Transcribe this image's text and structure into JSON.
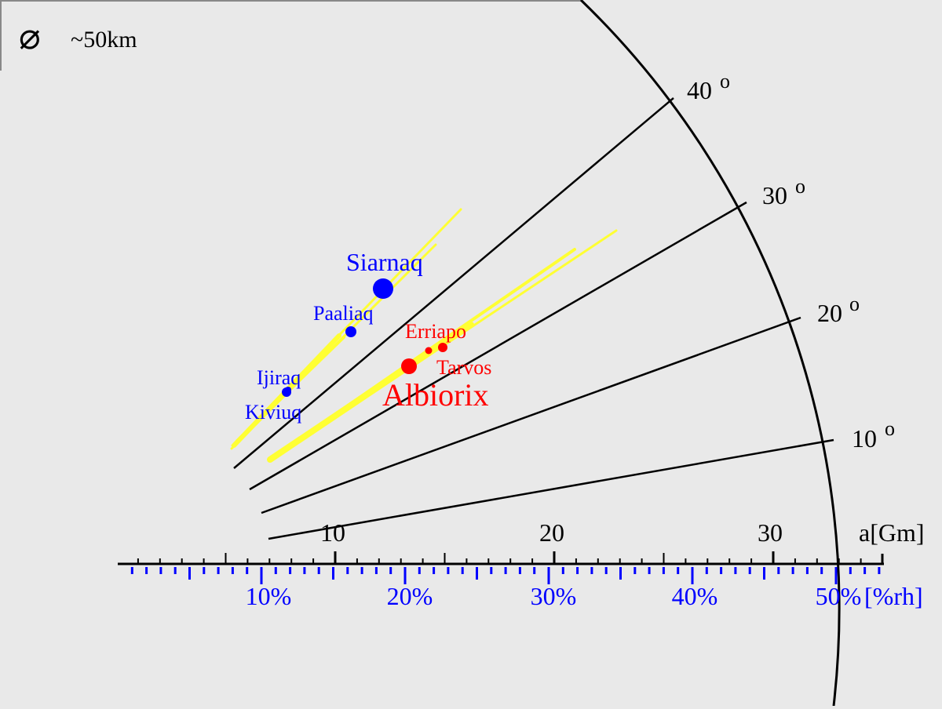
{
  "legend": {
    "symbol": "⌀",
    "text": "~50km"
  },
  "axes": {
    "top_unit": "a[Gm]",
    "top_ticks": [
      {
        "value": 10,
        "label": "10"
      },
      {
        "value": 20,
        "label": "20"
      },
      {
        "value": 30,
        "label": "30"
      }
    ],
    "bottom_unit": "[%rh]",
    "bottom_ticks": [
      {
        "value": 10,
        "label": "10%"
      },
      {
        "value": 20,
        "label": "20%"
      },
      {
        "value": 30,
        "label": "30%"
      },
      {
        "value": 40,
        "label": "40%"
      },
      {
        "value": 50,
        "label": "50%"
      }
    ]
  },
  "inclination_lines": [
    {
      "deg": 10,
      "label": "10",
      "sup": "o"
    },
    {
      "deg": 20,
      "label": "20",
      "sup": "o"
    },
    {
      "deg": 30,
      "label": "30",
      "sup": "o"
    },
    {
      "deg": 40,
      "label": "40",
      "sup": "o"
    }
  ],
  "colors": {
    "inuit": "#0000ff",
    "gallic": "#ff0000",
    "range": "#ffff33",
    "lines": "#000000",
    "background": "#e9e9e9"
  },
  "moons": [
    {
      "name": "Siarnaq",
      "group": "inuit",
      "size": "large"
    },
    {
      "name": "Paaliaq",
      "group": "inuit",
      "size": "medium"
    },
    {
      "name": "Ijiraq",
      "group": "inuit",
      "size": "small"
    },
    {
      "name": "Kiviuq",
      "group": "inuit",
      "size": "small"
    },
    {
      "name": "Albiorix",
      "group": "gallic",
      "size": "large"
    },
    {
      "name": "Erriapo",
      "group": "gallic",
      "size": "small"
    },
    {
      "name": "Tarvos",
      "group": "gallic",
      "size": "small"
    }
  ]
}
